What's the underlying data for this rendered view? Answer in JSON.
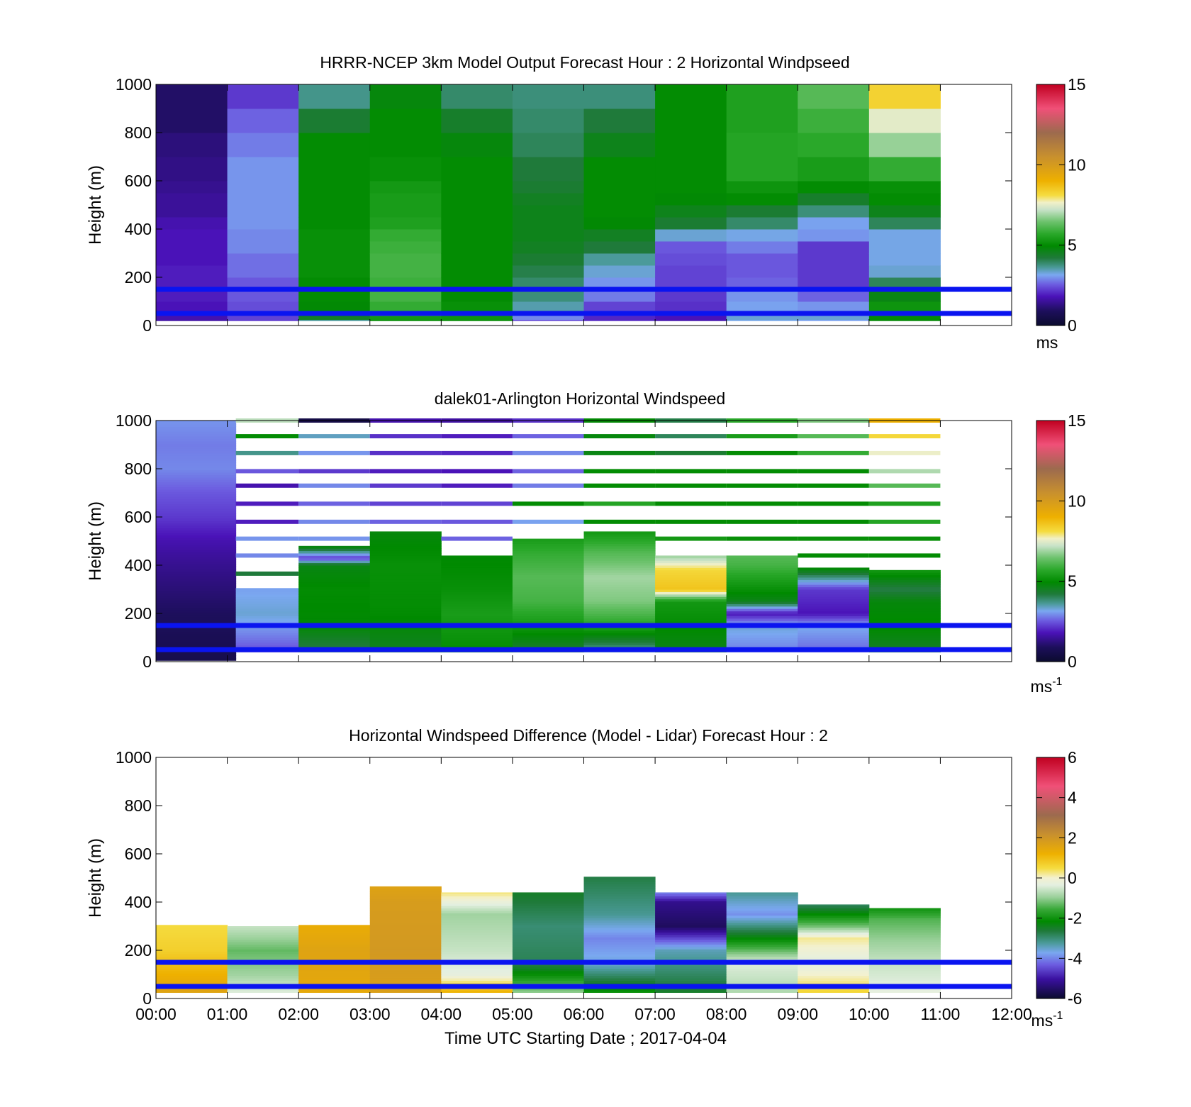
{
  "figure": {
    "xaxis_label": "Time UTC  Starting Date ; 2017-04-04"
  },
  "chart_data": [
    {
      "type": "heatmap",
      "title": "HRRR-NCEP 3km Model Output   Forecast Hour : 2 Horizontal Windpseed",
      "ylabel": "Height (m)",
      "colorbar_label": "ms",
      "colorbar_range": [
        0,
        15
      ],
      "colorbar_ticks": [
        "0",
        "5",
        "10",
        "15"
      ],
      "xlim": [
        0,
        12
      ],
      "ylim": [
        0,
        1000
      ],
      "x_ticks": [
        0,
        1,
        2,
        3,
        4,
        5,
        6,
        7,
        8,
        9,
        10,
        11,
        12
      ],
      "y_ticks": [
        "0",
        "200",
        "400",
        "600",
        "800",
        "1000"
      ],
      "show_x_tick_labels": false,
      "bin_width_hours": 1,
      "hlines": [
        50,
        150
      ],
      "levels": [
        25,
        40,
        60,
        100,
        150,
        200,
        250,
        300,
        350,
        400,
        450,
        500,
        550,
        600,
        700,
        800,
        900,
        1000
      ],
      "columns": [
        {
          "x": 0,
          "values": [
            1.6,
            1.7,
            1.8,
            1.8,
            1.9,
            1.9,
            1.9,
            1.8,
            1.8,
            1.8,
            1.7,
            1.5,
            1.5,
            1.4,
            1.3,
            1.2,
            1.0,
            1.0
          ]
        },
        {
          "x": 1,
          "values": [
            2.2,
            2.3,
            2.4,
            2.4,
            2.5,
            2.5,
            2.7,
            2.7,
            2.9,
            2.9,
            3.0,
            3.0,
            3.0,
            3.0,
            3.0,
            2.8,
            2.6,
            2.2
          ]
        },
        {
          "x": 2,
          "values": [
            3.6,
            4.5,
            4.9,
            4.9,
            5.0,
            5.0,
            5.1,
            5.1,
            5.1,
            5.1,
            5.0,
            5.0,
            5.0,
            5.0,
            5.0,
            5.0,
            4.3,
            3.7
          ]
        },
        {
          "x": 3,
          "values": [
            5.0,
            5.3,
            5.9,
            5.8,
            6.0,
            5.9,
            6.0,
            6.0,
            5.9,
            5.8,
            5.5,
            5.4,
            5.4,
            5.3,
            5.1,
            5.0,
            5.0,
            4.8
          ]
        },
        {
          "x": 4,
          "values": [
            5.0,
            5.2,
            5.3,
            5.1,
            5.0,
            5.0,
            5.0,
            5.0,
            5.0,
            5.0,
            5.0,
            5.0,
            5.0,
            5.0,
            5.0,
            4.8,
            4.4,
            3.9
          ]
        },
        {
          "x": 5,
          "values": [
            2.4,
            2.9,
            3.2,
            3.5,
            3.8,
            3.9,
            4.1,
            4.3,
            4.5,
            4.6,
            4.6,
            4.6,
            4.5,
            4.3,
            4.2,
            4.0,
            3.9,
            3.8
          ]
        },
        {
          "x": 6,
          "values": [
            2.0,
            2.0,
            2.2,
            2.3,
            2.8,
            3.0,
            3.3,
            3.6,
            4.2,
            4.5,
            4.9,
            5.0,
            5.0,
            5.0,
            5.0,
            4.6,
            4.2,
            3.8
          ]
        },
        {
          "x": 7,
          "values": [
            1.7,
            1.8,
            1.9,
            2.1,
            2.2,
            2.3,
            2.3,
            2.4,
            2.5,
            3.3,
            4.3,
            4.6,
            4.9,
            5.0,
            5.0,
            5.0,
            5.0,
            5.0
          ]
        },
        {
          "x": 8,
          "values": [
            3.2,
            3.3,
            3.2,
            3.1,
            3.0,
            2.6,
            2.5,
            2.5,
            2.8,
            3.2,
            3.9,
            4.3,
            5.0,
            5.2,
            5.6,
            5.6,
            5.5,
            5.5
          ]
        },
        {
          "x": 9,
          "values": [
            3.1,
            3.3,
            3.2,
            3.0,
            2.6,
            2.2,
            2.2,
            2.2,
            2.2,
            3.0,
            3.1,
            3.8,
            4.4,
            5.0,
            5.4,
            5.7,
            5.9,
            6.2
          ]
        },
        {
          "x": 10,
          "values": [
            4.9,
            5.0,
            5.2,
            5.2,
            4.7,
            4.0,
            3.3,
            3.2,
            3.2,
            3.2,
            4.0,
            4.6,
            5.0,
            5.1,
            5.8,
            6.8,
            7.5,
            8.3
          ]
        }
      ]
    },
    {
      "type": "heatmap",
      "title": "dalek01-Arlington  Horizontal Windspeed",
      "ylabel": "Height (m)",
      "colorbar_label": "ms",
      "colorbar_label_exp": "-1",
      "colorbar_range": [
        0,
        15
      ],
      "colorbar_ticks": [
        "0",
        "5",
        "10",
        "15"
      ],
      "xlim": [
        0,
        12
      ],
      "ylim": [
        0,
        1000
      ],
      "x_ticks": [
        0,
        1,
        2,
        3,
        4,
        5,
        6,
        7,
        8,
        9,
        10,
        11,
        12
      ],
      "y_ticks": [
        "0",
        "200",
        "400",
        "600",
        "800",
        "1000"
      ],
      "show_x_tick_labels": false,
      "bin_width_hours": 1,
      "hlines": [
        50,
        150
      ],
      "columns": [
        {
          "x": 0,
          "width": 1.12,
          "bottom": 5,
          "top": 1000,
          "profile": [
            [
              0,
              0.6
            ],
            [
              200,
              0.9
            ],
            [
              400,
              1.4
            ],
            [
              500,
              1.7
            ],
            [
              600,
              2.2
            ],
            [
              700,
              2.5
            ],
            [
              800,
              2.9
            ],
            [
              900,
              2.8
            ],
            [
              1000,
              3.0
            ]
          ]
        },
        {
          "x": 1.12,
          "width": 0.88,
          "bottom": 40,
          "top": 305,
          "profile": [
            [
              40,
              2.4
            ],
            [
              120,
              2.9
            ],
            [
              200,
              3.3
            ],
            [
              300,
              3.1
            ]
          ]
        },
        {
          "x": 2,
          "bottom": 40,
          "top": 480,
          "profile": [
            [
              40,
              4.0
            ],
            [
              150,
              4.9
            ],
            [
              300,
              5.0
            ],
            [
              400,
              4.7
            ],
            [
              430,
              2.2
            ],
            [
              480,
              5.0
            ]
          ]
        },
        {
          "x": 3,
          "bottom": 40,
          "top": 540,
          "profile": [
            [
              40,
              4.5
            ],
            [
              200,
              5.0
            ],
            [
              400,
              5.1
            ],
            [
              540,
              4.8
            ]
          ]
        },
        {
          "x": 4,
          "bottom": 40,
          "top": 440,
          "profile": [
            [
              40,
              5.0
            ],
            [
              200,
              5.4
            ],
            [
              300,
              5.1
            ],
            [
              440,
              4.9
            ]
          ]
        },
        {
          "x": 5,
          "bottom": 40,
          "top": 510,
          "profile": [
            [
              40,
              4.2
            ],
            [
              150,
              5.3
            ],
            [
              250,
              6.0
            ],
            [
              350,
              6.2
            ],
            [
              450,
              5.8
            ],
            [
              510,
              5.4
            ]
          ]
        },
        {
          "x": 6,
          "bottom": 40,
          "top": 540,
          "profile": [
            [
              40,
              3.4
            ],
            [
              150,
              5.6
            ],
            [
              250,
              6.6
            ],
            [
              350,
              6.9
            ],
            [
              450,
              6.2
            ],
            [
              540,
              5.3
            ]
          ]
        },
        {
          "x": 7,
          "bottom": 40,
          "top": 440,
          "profile": [
            [
              40,
              4.6
            ],
            [
              150,
              5.0
            ],
            [
              250,
              5.3
            ],
            [
              300,
              8.6
            ],
            [
              380,
              8.2
            ],
            [
              440,
              6.8
            ]
          ]
        },
        {
          "x": 8,
          "bottom": 40,
          "top": 440,
          "profile": [
            [
              40,
              2.8
            ],
            [
              150,
              3.3
            ],
            [
              200,
              1.8
            ],
            [
              250,
              4.6
            ],
            [
              300,
              5.1
            ],
            [
              400,
              6.0
            ],
            [
              440,
              6.2
            ]
          ]
        },
        {
          "x": 9,
          "bottom": 40,
          "top": 390,
          "profile": [
            [
              40,
              2.6
            ],
            [
              150,
              3.2
            ],
            [
              200,
              1.8
            ],
            [
              300,
              2.2
            ],
            [
              390,
              5.0
            ]
          ]
        },
        {
          "x": 10,
          "bottom": 40,
          "top": 380,
          "profile": [
            [
              40,
              4.4
            ],
            [
              150,
              5.0
            ],
            [
              250,
              4.8
            ],
            [
              300,
              4.1
            ],
            [
              380,
              5.3
            ]
          ]
        }
      ],
      "upper_levels": [
        365,
        440,
        510,
        580,
        655,
        730,
        790,
        865,
        935,
        1000
      ],
      "upper_values": [
        [
          null,
          2.8,
          3.1,
          2.0,
          1.9,
          1.7,
          2.5,
          3.4,
          4.5,
          5.9
        ],
        [
          4.2,
          2.9,
          3.0,
          1.9,
          1.9,
          1.7,
          2.5,
          3.7,
          5.0,
          7.1
        ],
        [
          null,
          null,
          3.0,
          2.9,
          2.6,
          2.9,
          2.2,
          3.0,
          3.4,
          0.5
        ],
        [
          null,
          null,
          null,
          2.6,
          2.3,
          2.2,
          1.9,
          2.1,
          2.1,
          1.7
        ],
        [
          null,
          5.0,
          2.6,
          2.5,
          2.3,
          1.9,
          1.8,
          2.0,
          1.9,
          1.6
        ],
        [
          null,
          null,
          3.7,
          3.1,
          5.0,
          2.8,
          2.6,
          2.9,
          2.6,
          2.1
        ],
        [
          null,
          null,
          null,
          5.0,
          5.6,
          5.0,
          5.0,
          4.7,
          4.8,
          4.9
        ],
        [
          null,
          5.0,
          5.3,
          5.0,
          5.0,
          5.0,
          5.0,
          4.3,
          4.0,
          4.1
        ],
        [
          null,
          5.0,
          5.1,
          5.0,
          5.0,
          5.0,
          5.0,
          5.0,
          5.4,
          5.7
        ],
        [
          4.0,
          5.0,
          5.1,
          5.0,
          5.0,
          5.0,
          5.0,
          5.8,
          6.2,
          6.6
        ],
        [
          null,
          5.0,
          5.1,
          5.6,
          5.5,
          6.2,
          7.0,
          7.6,
          8.2,
          9.0
        ]
      ]
    },
    {
      "type": "heatmap",
      "title": "Horizontal Windspeed Difference (Model - Lidar) Forecast Hour : 2",
      "ylabel": "Height (m)",
      "colorbar_label": "ms",
      "colorbar_label_exp": "-1",
      "colorbar_range": [
        -6,
        6
      ],
      "colorbar_ticks": [
        "-6",
        "-4",
        "-2",
        "0",
        "2",
        "4",
        "6"
      ],
      "xlim": [
        0,
        12
      ],
      "ylim": [
        0,
        1000
      ],
      "x_ticks": [
        0,
        1,
        2,
        3,
        4,
        5,
        6,
        7,
        8,
        9,
        10,
        11,
        12
      ],
      "x_tick_labels": [
        "00:00",
        "01:00",
        "02:00",
        "03:00",
        "04:00",
        "05:00",
        "06:00",
        "07:00",
        "08:00",
        "09:00",
        "10:00",
        "11:00",
        "12:00"
      ],
      "y_ticks": [
        "0",
        "200",
        "400",
        "600",
        "800",
        "1000"
      ],
      "show_x_tick_labels": true,
      "bin_width_hours": 1,
      "hlines": [
        50,
        150
      ],
      "columns": [
        {
          "x": 0,
          "bottom": 25,
          "top": 305,
          "profile": [
            [
              25,
              1.6
            ],
            [
              100,
              1.2
            ],
            [
              200,
              0.7
            ],
            [
              305,
              0.5
            ]
          ]
        },
        {
          "x": 1,
          "bottom": 25,
          "top": 300,
          "profile": [
            [
              25,
              -0.4
            ],
            [
              100,
              -0.9
            ],
            [
              200,
              -1.3
            ],
            [
              300,
              -0.6
            ]
          ]
        },
        {
          "x": 2,
          "bottom": 25,
          "top": 305,
          "profile": [
            [
              25,
              1.4
            ],
            [
              100,
              1.5
            ],
            [
              200,
              1.6
            ],
            [
              305,
              1.3
            ]
          ]
        },
        {
          "x": 3,
          "bottom": 25,
          "top": 465,
          "profile": [
            [
              25,
              1.7
            ],
            [
              200,
              1.9
            ],
            [
              400,
              1.8
            ],
            [
              465,
              1.6
            ]
          ]
        },
        {
          "x": 4,
          "bottom": 25,
          "top": 440,
          "profile": [
            [
              25,
              1.2
            ],
            [
              100,
              -0.3
            ],
            [
              200,
              -0.6
            ],
            [
              350,
              -0.9
            ],
            [
              440,
              0.3
            ]
          ]
        },
        {
          "x": 5,
          "bottom": 25,
          "top": 440,
          "profile": [
            [
              25,
              -1.0
            ],
            [
              150,
              -2.8
            ],
            [
              300,
              -3.0
            ],
            [
              440,
              -2.5
            ]
          ]
        },
        {
          "x": 6,
          "bottom": 25,
          "top": 505,
          "profile": [
            [
              25,
              -2.0
            ],
            [
              150,
              -3.6
            ],
            [
              250,
              -4.0
            ],
            [
              350,
              -3.2
            ],
            [
              505,
              -2.7
            ]
          ]
        },
        {
          "x": 7,
          "bottom": 25,
          "top": 440,
          "profile": [
            [
              25,
              -2.5
            ],
            [
              200,
              -3.4
            ],
            [
              300,
              -5.6
            ],
            [
              400,
              -5.2
            ],
            [
              440,
              -4.0
            ]
          ]
        },
        {
          "x": 8,
          "bottom": 25,
          "top": 440,
          "profile": [
            [
              25,
              -0.8
            ],
            [
              150,
              -0.4
            ],
            [
              250,
              -2.2
            ],
            [
              350,
              -3.9
            ],
            [
              440,
              -3.2
            ]
          ]
        },
        {
          "x": 9,
          "bottom": 25,
          "top": 390,
          "profile": [
            [
              25,
              0.6
            ],
            [
              150,
              -0.4
            ],
            [
              250,
              0.2
            ],
            [
              300,
              -1.2
            ],
            [
              390,
              -2.9
            ]
          ]
        },
        {
          "x": 10,
          "bottom": 25,
          "top": 375,
          "profile": [
            [
              25,
              -0.3
            ],
            [
              150,
              -0.6
            ],
            [
              250,
              -1.0
            ],
            [
              330,
              -1.4
            ],
            [
              375,
              -2.0
            ]
          ]
        }
      ]
    }
  ]
}
